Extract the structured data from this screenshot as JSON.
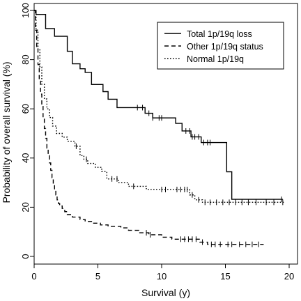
{
  "chart_data": {
    "type": "line",
    "title": "",
    "xlabel": "Survival (y)",
    "ylabel": "Probability of overall survival (%)",
    "xlim": [
      0,
      20
    ],
    "ylim": [
      0,
      100
    ],
    "x_ticks": [
      "0",
      "5",
      "10",
      "15",
      "20"
    ],
    "y_ticks": [
      "0",
      "20",
      "40",
      "60",
      "80",
      "100"
    ],
    "grid": false,
    "legend_position": "top-right",
    "series": [
      {
        "name": "Total 1p/19q loss",
        "line_style": "solid",
        "color": "#000000",
        "steps": [
          [
            0,
            100
          ],
          [
            0.15,
            98.4
          ],
          [
            0.9,
            92.6
          ],
          [
            1.6,
            89.5
          ],
          [
            2.6,
            83.4
          ],
          [
            3.0,
            78.3
          ],
          [
            3.6,
            76.3
          ],
          [
            4.0,
            74.8
          ],
          [
            4.5,
            69.9
          ],
          [
            5.4,
            67.0
          ],
          [
            5.8,
            63.9
          ],
          [
            6.5,
            60.5
          ],
          [
            8.7,
            58.2
          ],
          [
            9.3,
            56.3
          ],
          [
            11.1,
            54.1
          ],
          [
            11.6,
            51.0
          ],
          [
            12.3,
            48.6
          ],
          [
            13.1,
            46.3
          ],
          [
            15.1,
            34.4
          ],
          [
            15.5,
            23.2
          ],
          [
            19.5,
            23.2
          ]
        ],
        "censored": [
          8.1,
          8.5,
          9.0,
          9.3,
          9.8,
          10.0,
          11.9,
          12.2,
          12.4,
          12.6,
          12.9,
          13.3,
          13.6,
          13.8,
          19.4
        ]
      },
      {
        "name": "Other 1p/19q status",
        "line_style": "dashed",
        "color": "#000000",
        "steps": [
          [
            0,
            100
          ],
          [
            0.1,
            92
          ],
          [
            0.2,
            85
          ],
          [
            0.3,
            78
          ],
          [
            0.4,
            72
          ],
          [
            0.5,
            66
          ],
          [
            0.6,
            61
          ],
          [
            0.7,
            56
          ],
          [
            0.8,
            52
          ],
          [
            0.9,
            48
          ],
          [
            1.0,
            44
          ],
          [
            1.1,
            41
          ],
          [
            1.2,
            38
          ],
          [
            1.3,
            35
          ],
          [
            1.4,
            32
          ],
          [
            1.5,
            29.5
          ],
          [
            1.6,
            27
          ],
          [
            1.7,
            25
          ],
          [
            1.8,
            23
          ],
          [
            1.9,
            21.5
          ],
          [
            2.0,
            20.5
          ],
          [
            2.2,
            19.5
          ],
          [
            2.4,
            18.2
          ],
          [
            2.6,
            17.0
          ],
          [
            3.0,
            16.0
          ],
          [
            3.6,
            15.0
          ],
          [
            4.0,
            14.2
          ],
          [
            4.6,
            13.5
          ],
          [
            5.2,
            12.8
          ],
          [
            5.8,
            12.2
          ],
          [
            6.8,
            11.6
          ],
          [
            7.4,
            10.6
          ],
          [
            8.2,
            9.6
          ],
          [
            9.0,
            8.8
          ],
          [
            10.0,
            7.8
          ],
          [
            10.8,
            7.0
          ],
          [
            13.0,
            5.8
          ],
          [
            13.6,
            4.9
          ],
          [
            18,
            4.9
          ]
        ],
        "censored": [
          8.8,
          9.1,
          11.5,
          11.8,
          12.1,
          12.4,
          12.7,
          13.2,
          13.9,
          14.2,
          14.6,
          15.2,
          15.5,
          16.1,
          16.6,
          17.1,
          17.6
        ]
      },
      {
        "name": "Normal 1p/19q",
        "line_style": "dotted",
        "color": "#000000",
        "steps": [
          [
            0,
            100
          ],
          [
            0.15,
            92
          ],
          [
            0.3,
            84
          ],
          [
            0.45,
            77
          ],
          [
            0.6,
            70
          ],
          [
            0.8,
            64
          ],
          [
            1.0,
            60
          ],
          [
            1.2,
            56.5
          ],
          [
            1.45,
            53
          ],
          [
            1.75,
            50
          ],
          [
            2.2,
            48.5
          ],
          [
            2.6,
            46.8
          ],
          [
            3.2,
            44.8
          ],
          [
            3.6,
            41
          ],
          [
            3.9,
            39.5
          ],
          [
            4.2,
            37.8
          ],
          [
            4.8,
            36.2
          ],
          [
            5.3,
            34.5
          ],
          [
            5.7,
            31.5
          ],
          [
            6.6,
            30
          ],
          [
            7.4,
            28.5
          ],
          [
            8.8,
            27.2
          ],
          [
            12.2,
            25
          ],
          [
            12.6,
            23
          ],
          [
            13.2,
            22
          ],
          [
            19.6,
            22
          ]
        ],
        "censored": [
          3.3,
          4.1,
          6.1,
          6.5,
          7.8,
          10.0,
          10.3,
          11.2,
          11.5,
          11.8,
          12.0,
          12.4,
          12.9,
          13.4,
          13.8,
          14.3,
          14.8,
          15.3,
          15.8,
          16.3,
          16.8,
          17.4,
          18.2,
          18.8,
          19.5
        ]
      }
    ]
  }
}
